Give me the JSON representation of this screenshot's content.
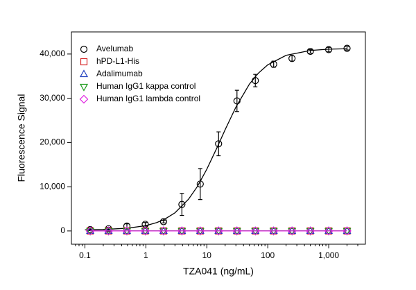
{
  "chart_data": {
    "type": "scatter",
    "x_label": "TZA041 (ng/mL)",
    "y_label": "Fluorescence Signal",
    "x_scale": "log",
    "xlim": [
      0.06,
      4000
    ],
    "xticks": [
      0.1,
      1,
      10,
      100,
      {
        "value": 1000,
        "label": "1,000"
      }
    ],
    "ylim": [
      -3000,
      45000
    ],
    "yticks": [
      0,
      {
        "value": 10000,
        "label": "10,000"
      },
      {
        "value": 20000,
        "label": "20,000"
      },
      {
        "value": 30000,
        "label": "30,000"
      },
      {
        "value": 40000,
        "label": "40,000"
      }
    ],
    "legend": "upper left",
    "x": [
      0.122,
      0.244,
      0.488,
      0.977,
      1.95,
      3.9,
      7.8,
      15.6,
      31.25,
      62.5,
      125,
      250,
      500,
      1000,
      2000
    ],
    "series": [
      {
        "name": "Avelumab",
        "color": "#000000",
        "marker": "circle",
        "values": [
          300,
          500,
          1100,
          1500,
          2100,
          6000,
          10600,
          19700,
          29400,
          34000,
          37700,
          39000,
          40600,
          41000,
          41300
        ],
        "errors": [
          200,
          300,
          500,
          400,
          300,
          2500,
          3500,
          2700,
          2400,
          1400,
          700,
          600,
          400,
          500,
          400
        ]
      },
      {
        "name": "hPD-L1-His",
        "color": "#d62728",
        "marker": "square",
        "values": [
          0,
          0,
          0,
          0,
          0,
          0,
          0,
          0,
          0,
          0,
          0,
          0,
          0,
          0,
          0
        ]
      },
      {
        "name": "Adalimumab",
        "color": "#1f3fbf",
        "marker": "triangle-up",
        "values": [
          0,
          0,
          0,
          0,
          0,
          0,
          0,
          0,
          0,
          0,
          0,
          0,
          0,
          0,
          0
        ]
      },
      {
        "name": "Human IgG1 kappa control",
        "color": "#1a9a1a",
        "marker": "triangle-down",
        "values": [
          0,
          0,
          0,
          0,
          0,
          0,
          0,
          0,
          0,
          0,
          0,
          0,
          0,
          0,
          0
        ]
      },
      {
        "name": "Human IgG1 lambda control",
        "color": "#e020e0",
        "marker": "diamond",
        "values": [
          0,
          0,
          0,
          0,
          0,
          0,
          0,
          0,
          0,
          0,
          0,
          0,
          0,
          0,
          0
        ]
      }
    ],
    "fit_curve": {
      "color": "#000000",
      "x": [
        0.1,
        0.2,
        0.5,
        1,
        1.5,
        2,
        3,
        5,
        7,
        10,
        15,
        20,
        30,
        50,
        70,
        100,
        200,
        500,
        1000,
        2000
      ],
      "values": [
        252,
        327,
        615,
        1200,
        1880,
        2590,
        4100,
        7160,
        10050,
        13960,
        19090,
        22900,
        28000,
        33200,
        35660,
        37560,
        39700,
        40800,
        41100,
        41200
      ]
    }
  }
}
